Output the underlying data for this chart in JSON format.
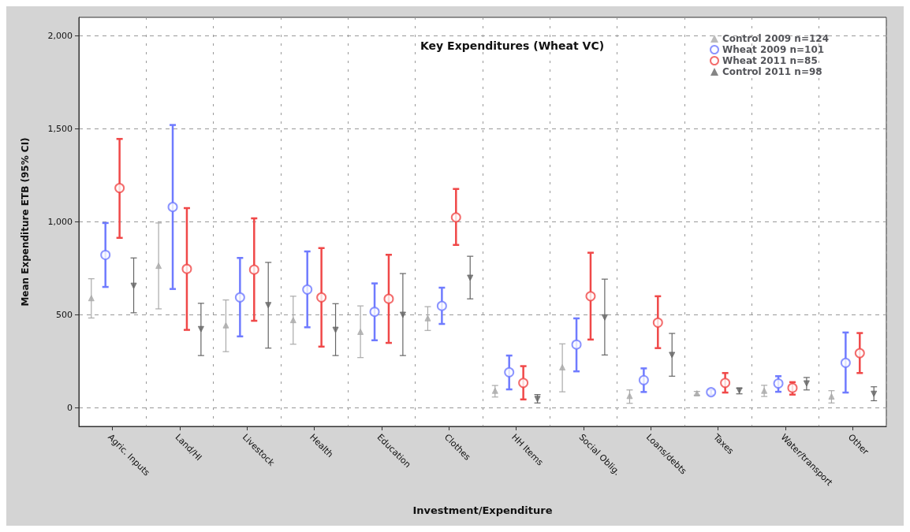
{
  "chart_data": {
    "type": "scatter",
    "title": "Key Expenditures (Wheat VC)",
    "xlabel": "Investment/Expenditure",
    "ylabel": "Mean Expenditure ETB (95% CI)",
    "categories": [
      "Agric. Inputs",
      "Land/HI",
      "Livestock",
      "Health",
      "Education",
      "Clothes",
      "HH Items",
      "Social Oblig.",
      "Loans/debts",
      "Taxes",
      "Water/transport",
      "Other"
    ],
    "ylim": [
      -100,
      2100
    ],
    "yticks": [
      0,
      500,
      {
        "value": 1000,
        "label": "1,000"
      },
      {
        "value": 1500,
        "label": "1,500"
      },
      {
        "value": 2000,
        "label": "2,000"
      }
    ],
    "grid": true,
    "legend": "top right",
    "series": [
      {
        "name": "Control 2009 n=124",
        "color": "#aaaaaa",
        "marker": "triangle",
        "values": [
          590,
          764,
          444,
          472,
          409,
          482,
          92,
          218,
          64,
          78,
          92,
          61
        ],
        "errors": [
          [
            483,
            694
          ],
          [
            532,
            994
          ],
          [
            302,
            580
          ],
          [
            342,
            600
          ],
          [
            270,
            548
          ],
          [
            416,
            544
          ],
          [
            58,
            120
          ],
          [
            86,
            344
          ],
          [
            24,
            96
          ],
          [
            68,
            88
          ],
          [
            61,
            121
          ],
          [
            26,
            92
          ]
        ]
      },
      {
        "name": "Wheat 2009 n=101",
        "color": "#6f7bff",
        "marker": "circle",
        "values": [
          822,
          1080,
          594,
          636,
          516,
          548,
          191,
          340,
          149,
          84,
          131,
          242
        ],
        "errors": [
          [
            650,
            994
          ],
          [
            639,
            1521
          ],
          [
            384,
            806
          ],
          [
            433,
            841
          ],
          [
            363,
            669
          ],
          [
            451,
            646
          ],
          [
            99,
            281
          ],
          [
            196,
            481
          ],
          [
            85,
            212
          ],
          [
            70,
            98
          ],
          [
            86,
            170
          ],
          [
            82,
            405
          ]
        ]
      },
      {
        "name": "Wheat 2011 n=85",
        "color": "#f04848",
        "marker": "circle",
        "values": [
          1182,
          747,
          743,
          594,
          586,
          1024,
          134,
          600,
          458,
          134,
          107,
          294
        ],
        "errors": [
          [
            914,
            1446
          ],
          [
            419,
            1074
          ],
          [
            468,
            1019
          ],
          [
            329,
            859
          ],
          [
            349,
            823
          ],
          [
            876,
            1177
          ],
          [
            45,
            224
          ],
          [
            367,
            834
          ],
          [
            321,
            600
          ],
          [
            82,
            187
          ],
          [
            71,
            138
          ],
          [
            187,
            402
          ]
        ]
      },
      {
        "name": "Control 2011 n=98",
        "color": "#666666",
        "marker": "triangle",
        "values": [
          656,
          423,
          552,
          419,
          500,
          699,
          47,
          486,
          284,
          93,
          131,
          75
        ],
        "errors": [
          [
            511,
            806
          ],
          [
            281,
            562
          ],
          [
            321,
            782
          ],
          [
            281,
            560
          ],
          [
            281,
            722
          ],
          [
            586,
            815
          ],
          [
            26,
            71
          ],
          [
            284,
            692
          ],
          [
            170,
            400
          ],
          [
            75,
            106
          ],
          [
            96,
            163
          ],
          [
            38,
            113
          ]
        ]
      }
    ]
  }
}
